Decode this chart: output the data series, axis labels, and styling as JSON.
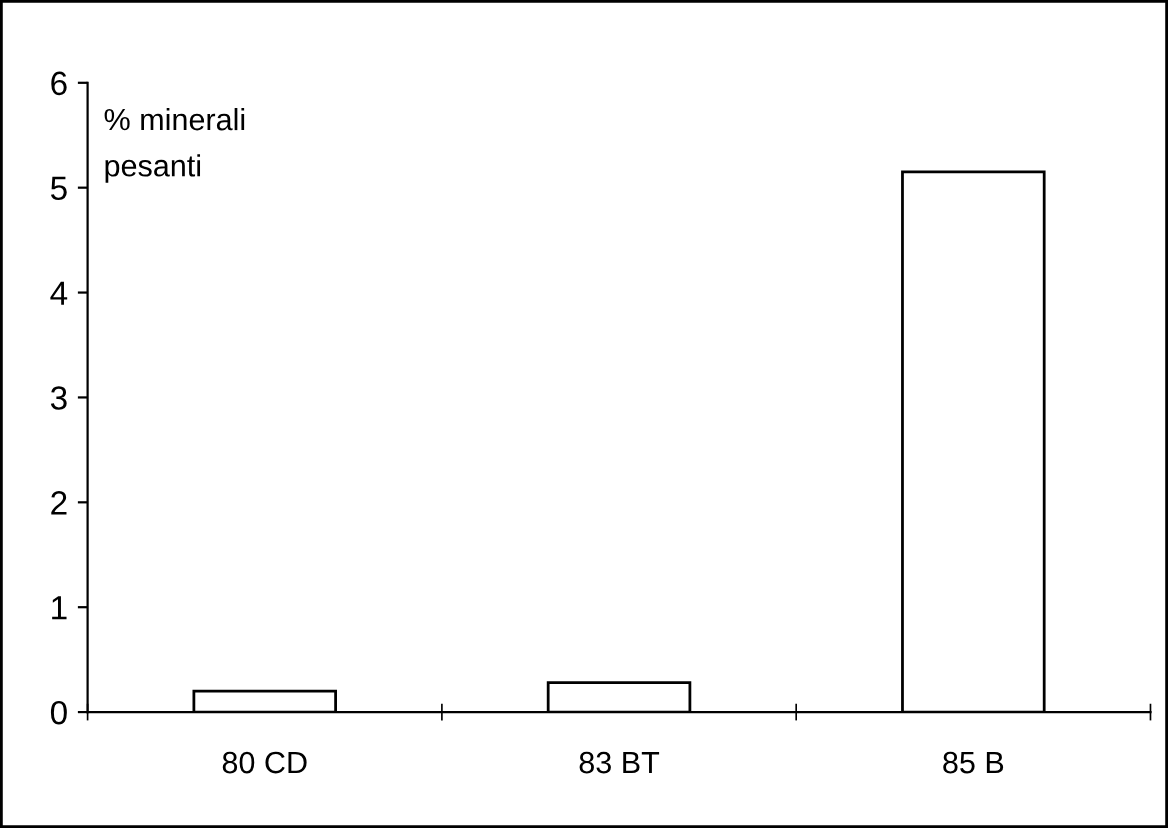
{
  "chart_data": {
    "type": "bar",
    "ylabel": "% minerali\npesanti",
    "categories": [
      "80 CD",
      "83 BT",
      "85 B"
    ],
    "values": [
      0.2,
      0.28,
      5.15
    ],
    "color": "#ffffff",
    "ylim": [
      0,
      6
    ],
    "yticks": [
      0,
      1,
      2,
      3,
      4,
      5,
      6
    ],
    "grid": false,
    "legend": false
  }
}
